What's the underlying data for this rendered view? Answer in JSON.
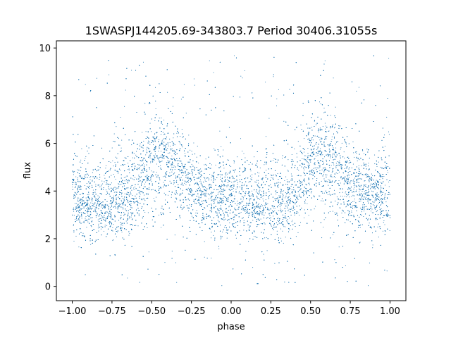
{
  "chart_data": {
    "type": "scatter",
    "title": "1SWASPJ144205.69-343803.7 Period 30406.31055s",
    "xlabel": "phase",
    "ylabel": "flux",
    "xlim": [
      -1.1,
      1.1
    ],
    "ylim": [
      -0.6,
      10.3
    ],
    "grid": false,
    "x_ticks": [
      -1.0,
      -0.75,
      -0.5,
      -0.25,
      0.0,
      0.25,
      0.5,
      0.75,
      1.0
    ],
    "x_tick_labels": [
      "−1.00",
      "−0.75",
      "−0.50",
      "−0.25",
      "0.00",
      "0.25",
      "0.50",
      "0.75",
      "1.00"
    ],
    "y_ticks": [
      0,
      2,
      4,
      6,
      8,
      10
    ],
    "y_tick_labels": [
      "0",
      "2",
      "4",
      "6",
      "8",
      "10"
    ],
    "marker_color": "#1f77b4",
    "series": [
      {
        "phase": [
          -1.0,
          -0.9,
          -0.8,
          -0.7,
          -0.6,
          -0.55,
          -0.5,
          -0.45,
          -0.4,
          -0.35,
          -0.3,
          -0.25,
          -0.2,
          -0.1,
          0.0,
          0.1,
          0.2,
          0.3,
          0.4,
          0.45,
          0.5,
          0.55,
          0.6,
          0.65,
          0.7,
          0.75,
          0.8,
          0.9,
          1.0
        ],
        "median_flux": [
          3.6,
          3.5,
          3.5,
          3.6,
          3.9,
          4.6,
          5.2,
          5.4,
          5.3,
          5.0,
          4.6,
          4.2,
          4.0,
          3.8,
          3.7,
          3.5,
          3.5,
          3.6,
          3.9,
          4.6,
          5.2,
          5.4,
          5.3,
          5.0,
          4.6,
          4.2,
          4.0,
          3.8,
          3.6
        ],
        "upper_envelope": [
          5.8,
          5.6,
          5.6,
          5.9,
          6.5,
          7.0,
          7.4,
          7.6,
          7.6,
          7.4,
          6.8,
          6.0,
          5.7,
          5.5,
          5.5,
          5.6,
          5.6,
          5.8,
          6.5,
          7.0,
          7.4,
          7.6,
          7.6,
          7.4,
          6.8,
          6.0,
          5.7,
          5.5,
          5.8
        ],
        "lower_envelope": [
          2.0,
          1.8,
          1.8,
          1.9,
          2.1,
          2.4,
          2.6,
          2.8,
          2.8,
          2.6,
          2.4,
          2.3,
          2.2,
          2.1,
          2.0,
          1.8,
          1.8,
          1.9,
          2.1,
          2.4,
          2.6,
          2.8,
          2.8,
          2.6,
          2.4,
          2.3,
          2.2,
          2.1,
          2.0
        ],
        "flux_range": [
          0,
          9.7
        ]
      }
    ]
  }
}
